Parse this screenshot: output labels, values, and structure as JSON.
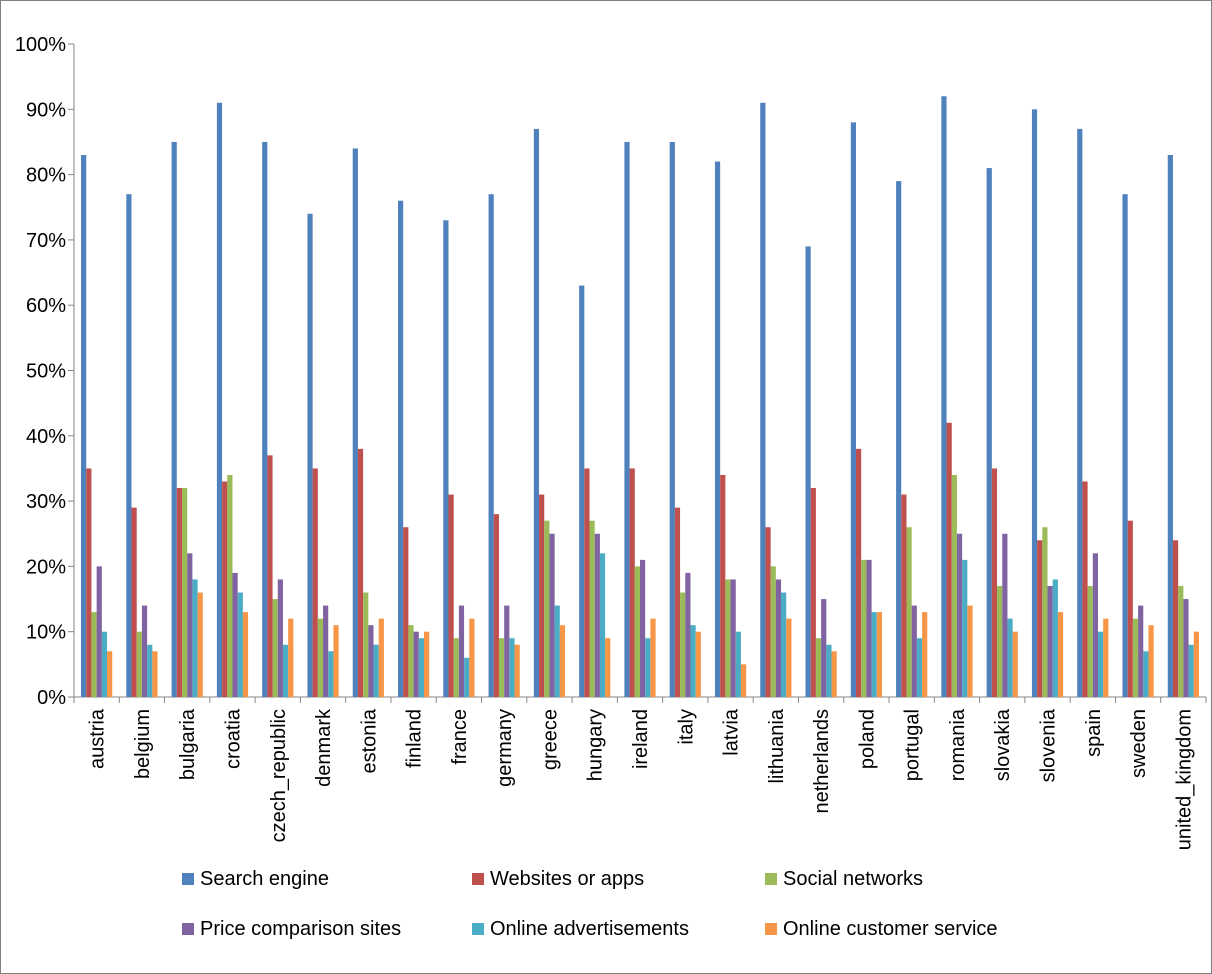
{
  "chart_data": {
    "type": "bar",
    "ylim": [
      0,
      100
    ],
    "y_ticks": [
      "0%",
      "10%",
      "20%",
      "30%",
      "40%",
      "50%",
      "60%",
      "70%",
      "80%",
      "90%",
      "100%"
    ],
    "grid": false,
    "legend_position": "bottom",
    "categories": [
      "austria",
      "belgium",
      "bulgaria",
      "croatia",
      "czech_republic",
      "denmark",
      "estonia",
      "finland",
      "france",
      "germany",
      "greece",
      "hungary",
      "ireland",
      "italy",
      "latvia",
      "lithuania",
      "netherlands",
      "poland",
      "portugal",
      "romania",
      "slovakia",
      "slovenia",
      "spain",
      "sweden",
      "united_kingdom"
    ],
    "series": [
      {
        "name": "Search engine",
        "color": "#4F81BD",
        "values": [
          83,
          77,
          85,
          91,
          85,
          74,
          84,
          76,
          73,
          77,
          87,
          63,
          85,
          85,
          82,
          91,
          69,
          88,
          79,
          92,
          81,
          90,
          87,
          77,
          83
        ]
      },
      {
        "name": "Websites or apps",
        "color": "#C0504D",
        "values": [
          35,
          29,
          32,
          33,
          37,
          35,
          38,
          26,
          31,
          28,
          31,
          35,
          35,
          29,
          34,
          26,
          32,
          38,
          31,
          42,
          35,
          24,
          33,
          27,
          24
        ]
      },
      {
        "name": "Social networks",
        "color": "#9BBB59",
        "values": [
          13,
          10,
          32,
          34,
          15,
          12,
          16,
          11,
          9,
          9,
          27,
          27,
          20,
          16,
          18,
          20,
          9,
          21,
          26,
          34,
          17,
          26,
          17,
          12,
          17
        ]
      },
      {
        "name": "Price comparison sites",
        "color": "#8064A2",
        "values": [
          20,
          14,
          22,
          19,
          18,
          14,
          11,
          10,
          14,
          14,
          25,
          25,
          21,
          19,
          18,
          18,
          15,
          21,
          14,
          25,
          25,
          17,
          22,
          14,
          15
        ]
      },
      {
        "name": "Online advertisements",
        "color": "#4BACC6",
        "values": [
          10,
          8,
          18,
          16,
          8,
          7,
          8,
          9,
          6,
          9,
          14,
          22,
          9,
          11,
          10,
          16,
          8,
          13,
          9,
          21,
          12,
          18,
          10,
          7,
          8
        ]
      },
      {
        "name": "Online customer service",
        "color": "#F79646",
        "values": [
          7,
          7,
          16,
          13,
          12,
          11,
          12,
          10,
          12,
          8,
          11,
          9,
          12,
          10,
          5,
          12,
          7,
          13,
          13,
          14,
          10,
          13,
          12,
          11,
          10
        ]
      }
    ]
  }
}
